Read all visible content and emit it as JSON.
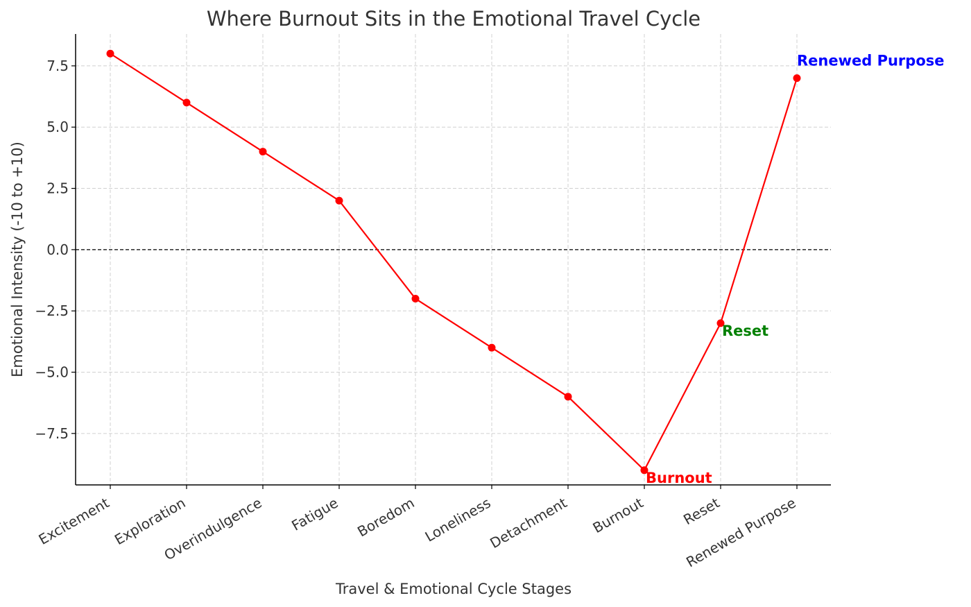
{
  "chart_data": {
    "type": "line",
    "title": "Where Burnout Sits in the Emotional Travel Cycle",
    "xlabel": "Travel & Emotional Cycle Stages",
    "ylabel": "Emotional Intensity (-10 to +10)",
    "categories": [
      "Excitement",
      "Exploration",
      "Overindulgence",
      "Fatigue",
      "Boredom",
      "Loneliness",
      "Detachment",
      "Burnout",
      "Reset",
      "Renewed Purpose"
    ],
    "values": [
      8,
      6,
      4,
      2,
      -2,
      -4,
      -6,
      -9,
      -3,
      7
    ],
    "ylim": [
      -9.6,
      8.8
    ],
    "yticks": [
      -7.5,
      -5.0,
      -2.5,
      0.0,
      2.5,
      5.0,
      7.5
    ],
    "ytick_labels": [
      "−7.5",
      "−5.0",
      "−2.5",
      "0.0",
      "2.5",
      "5.0",
      "7.5"
    ],
    "grid": true,
    "reference_line_y": 0,
    "line_color": "#ff0000",
    "annotations": [
      {
        "text": "Burnout",
        "category_index": 7,
        "color": "#ff0000"
      },
      {
        "text": "Reset",
        "category_index": 8,
        "color": "#008000"
      },
      {
        "text": "Renewed Purpose",
        "category_index": 9,
        "color": "#0000ff"
      }
    ]
  }
}
